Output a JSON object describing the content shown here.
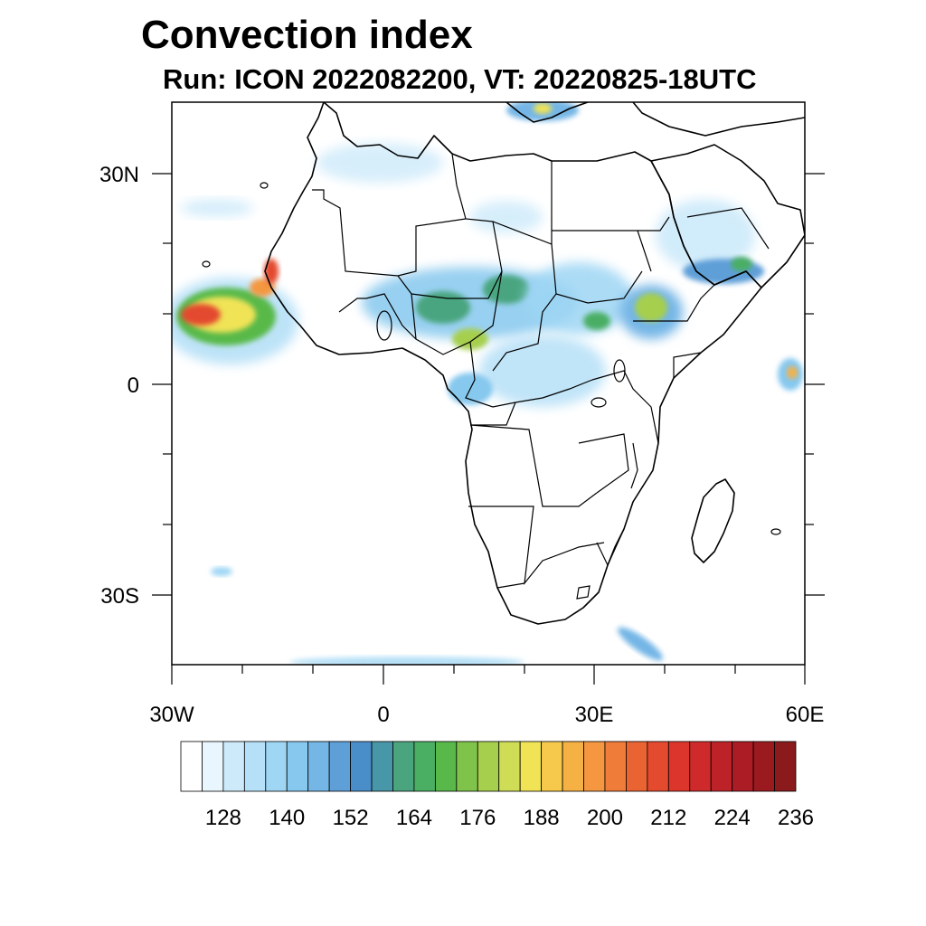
{
  "title": "Convection index",
  "subtitle": "Run: ICON 2022082200,  VT: 20220825-18UTC",
  "axes": {
    "lon_labels": [
      "30W",
      "0",
      "30E",
      "60E"
    ],
    "lat_labels": [
      "30N",
      "0",
      "30S"
    ]
  },
  "colorbar": {
    "labels": [
      "128",
      "140",
      "152",
      "164",
      "176",
      "188",
      "200",
      "212",
      "224",
      "236"
    ],
    "colors": [
      "#ffffff",
      "#e9f6fd",
      "#cdeafa",
      "#b6e0f7",
      "#9ed6f4",
      "#86c8ee",
      "#74b6e6",
      "#5f9fd8",
      "#4a8ec9",
      "#4897a8",
      "#4aa57f",
      "#4aae63",
      "#58b94a",
      "#7fc34a",
      "#a6cf4d",
      "#cfdc55",
      "#f0e356",
      "#f6c94c",
      "#f5b144",
      "#f49740",
      "#ef7c38",
      "#e96432",
      "#e34a2e",
      "#dc352c",
      "#cf2a2b",
      "#bd2228",
      "#ab1c24",
      "#9b1a20",
      "#8a1a1c"
    ]
  }
}
